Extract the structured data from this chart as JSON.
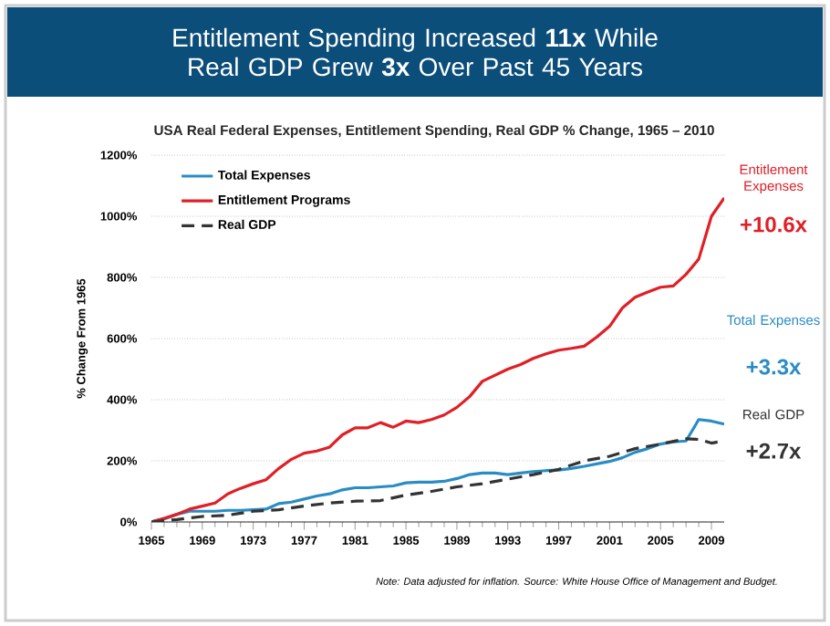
{
  "chart_data": {
    "type": "line",
    "title": "Entitlement Spending Increased **11x** While Real GDP Grew **3x** Over Past 45 Years",
    "subtitle": "USA Real Federal Expenses, Entitlement Spending, Real GDP % Change, 1965 – 2010",
    "ylabel": "% Change From 1965",
    "series": [
      {
        "name": "Total Expenses",
        "color": "#2a8cc4",
        "line_style": "solid",
        "x": [
          1965,
          1966,
          1967,
          1968,
          1969,
          1970,
          1971,
          1972,
          1973,
          1974,
          1975,
          1976,
          1977,
          1978,
          1979,
          1980,
          1981,
          1982,
          1983,
          1984,
          1985,
          1986,
          1987,
          1988,
          1989,
          1990,
          1991,
          1992,
          1993,
          1994,
          1995,
          1996,
          1997,
          1998,
          1999,
          2000,
          2001,
          2002,
          2003,
          2004,
          2005,
          2006,
          2007,
          2008,
          2009,
          2010
        ],
        "values": [
          0,
          10,
          25,
          35,
          35,
          35,
          38,
          38,
          40,
          42,
          60,
          65,
          75,
          85,
          92,
          105,
          112,
          112,
          115,
          118,
          128,
          130,
          130,
          133,
          142,
          155,
          160,
          160,
          155,
          160,
          165,
          168,
          170,
          175,
          182,
          190,
          198,
          210,
          228,
          240,
          255,
          262,
          265,
          335,
          330,
          320
        ]
      },
      {
        "name": "Entitlement Programs",
        "color": "#e01f26",
        "line_style": "solid",
        "x": [
          1965,
          1966,
          1967,
          1968,
          1969,
          1970,
          1971,
          1972,
          1973,
          1974,
          1975,
          1976,
          1977,
          1978,
          1979,
          1980,
          1981,
          1982,
          1983,
          1984,
          1985,
          1986,
          1987,
          1988,
          1989,
          1990,
          1991,
          1992,
          1993,
          1994,
          1995,
          1996,
          1997,
          1998,
          1999,
          2000,
          2001,
          2002,
          2003,
          2004,
          2005,
          2006,
          2007,
          2008,
          2009,
          2010
        ],
        "values": [
          0,
          12,
          25,
          42,
          52,
          62,
          92,
          110,
          125,
          138,
          175,
          205,
          225,
          232,
          245,
          285,
          308,
          308,
          325,
          310,
          330,
          325,
          335,
          350,
          375,
          410,
          460,
          480,
          500,
          515,
          535,
          550,
          562,
          568,
          575,
          605,
          640,
          700,
          735,
          752,
          768,
          772,
          810,
          860,
          1000,
          1060
        ]
      },
      {
        "name": "Real GDP",
        "color": "#333333",
        "line_style": "dashed",
        "x": [
          1965,
          1967,
          1969,
          1971,
          1973,
          1975,
          1977,
          1979,
          1981,
          1983,
          1985,
          1987,
          1989,
          1991,
          1993,
          1995,
          1997,
          1999,
          2001,
          2003,
          2005,
          2007,
          2008,
          2009,
          2010
        ],
        "values": [
          0,
          8,
          18,
          22,
          35,
          40,
          52,
          62,
          68,
          70,
          88,
          100,
          115,
          125,
          140,
          155,
          172,
          200,
          215,
          240,
          255,
          272,
          270,
          258,
          265
        ]
      }
    ],
    "xlim": [
      1965,
      2010
    ],
    "xticks": [
      1965,
      1969,
      1973,
      1977,
      1981,
      1985,
      1989,
      1993,
      1997,
      2001,
      2005,
      2009
    ],
    "ylim": [
      0,
      1200
    ],
    "yticks": [
      {
        "value": 0,
        "label": "0%"
      },
      {
        "value": 200,
        "label": "200%"
      },
      {
        "value": 400,
        "label": "400%"
      },
      {
        "value": 600,
        "label": "600%"
      },
      {
        "value": 800,
        "label": "800%"
      },
      {
        "value": 1000,
        "label": "1000%"
      },
      {
        "value": 1200,
        "label": "1200%"
      }
    ],
    "grid": "y",
    "legend": "top left",
    "marker": "none",
    "annotations": [
      "Entitlement Expenses",
      "+10.6x",
      "Total Expenses",
      "+3.3x",
      "Real GDP",
      "+2.7x",
      "*Note: Data adjusted for inflation. Source: White House Office of Management and Budget.*"
    ]
  }
}
